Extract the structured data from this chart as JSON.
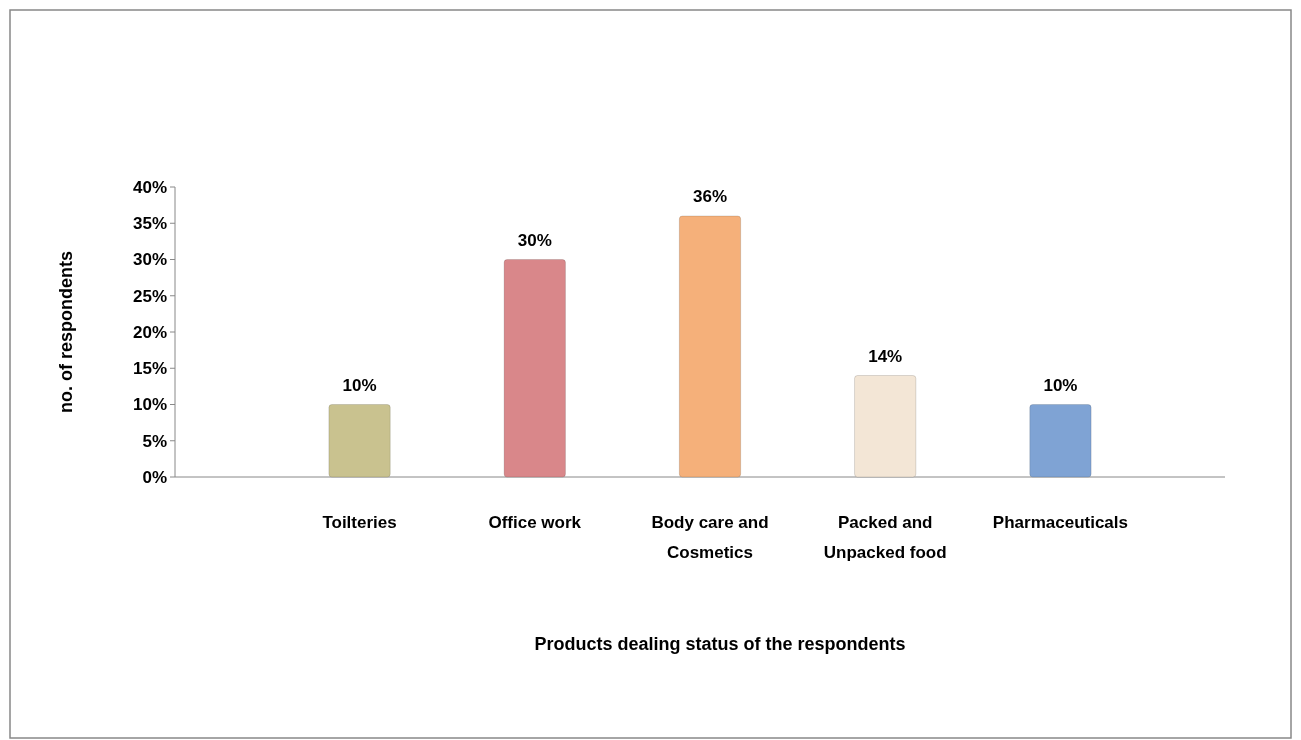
{
  "chart_data": {
    "type": "bar",
    "xlabel": "Products dealing status of the respondents",
    "ylabel": "no. of respondents",
    "categories": [
      "Toilteries",
      "Office work",
      "Body care and Cosmetics",
      "Packed and Unpacked food",
      "Pharmaceuticals"
    ],
    "values": [
      10,
      30,
      36,
      14,
      10
    ],
    "colors": [
      "#c9c28f",
      "#d9878a",
      "#f5b07a",
      "#f3e6d6",
      "#7fa3d4"
    ],
    "value_labels": [
      "10%",
      "30%",
      "36%",
      "14%",
      "10%"
    ],
    "ylim": [
      0,
      40
    ],
    "yticks": [
      {
        "value": 0,
        "label": "0%"
      },
      {
        "value": 5,
        "label": "5%"
      },
      {
        "value": 10,
        "label": "10%"
      },
      {
        "value": 15,
        "label": "15%"
      },
      {
        "value": 20,
        "label": "20%"
      },
      {
        "value": 25,
        "label": "25%"
      },
      {
        "value": 30,
        "label": "30%"
      },
      {
        "value": 35,
        "label": "35%"
      },
      {
        "value": 40,
        "label": "40%"
      }
    ],
    "grid": false
  }
}
